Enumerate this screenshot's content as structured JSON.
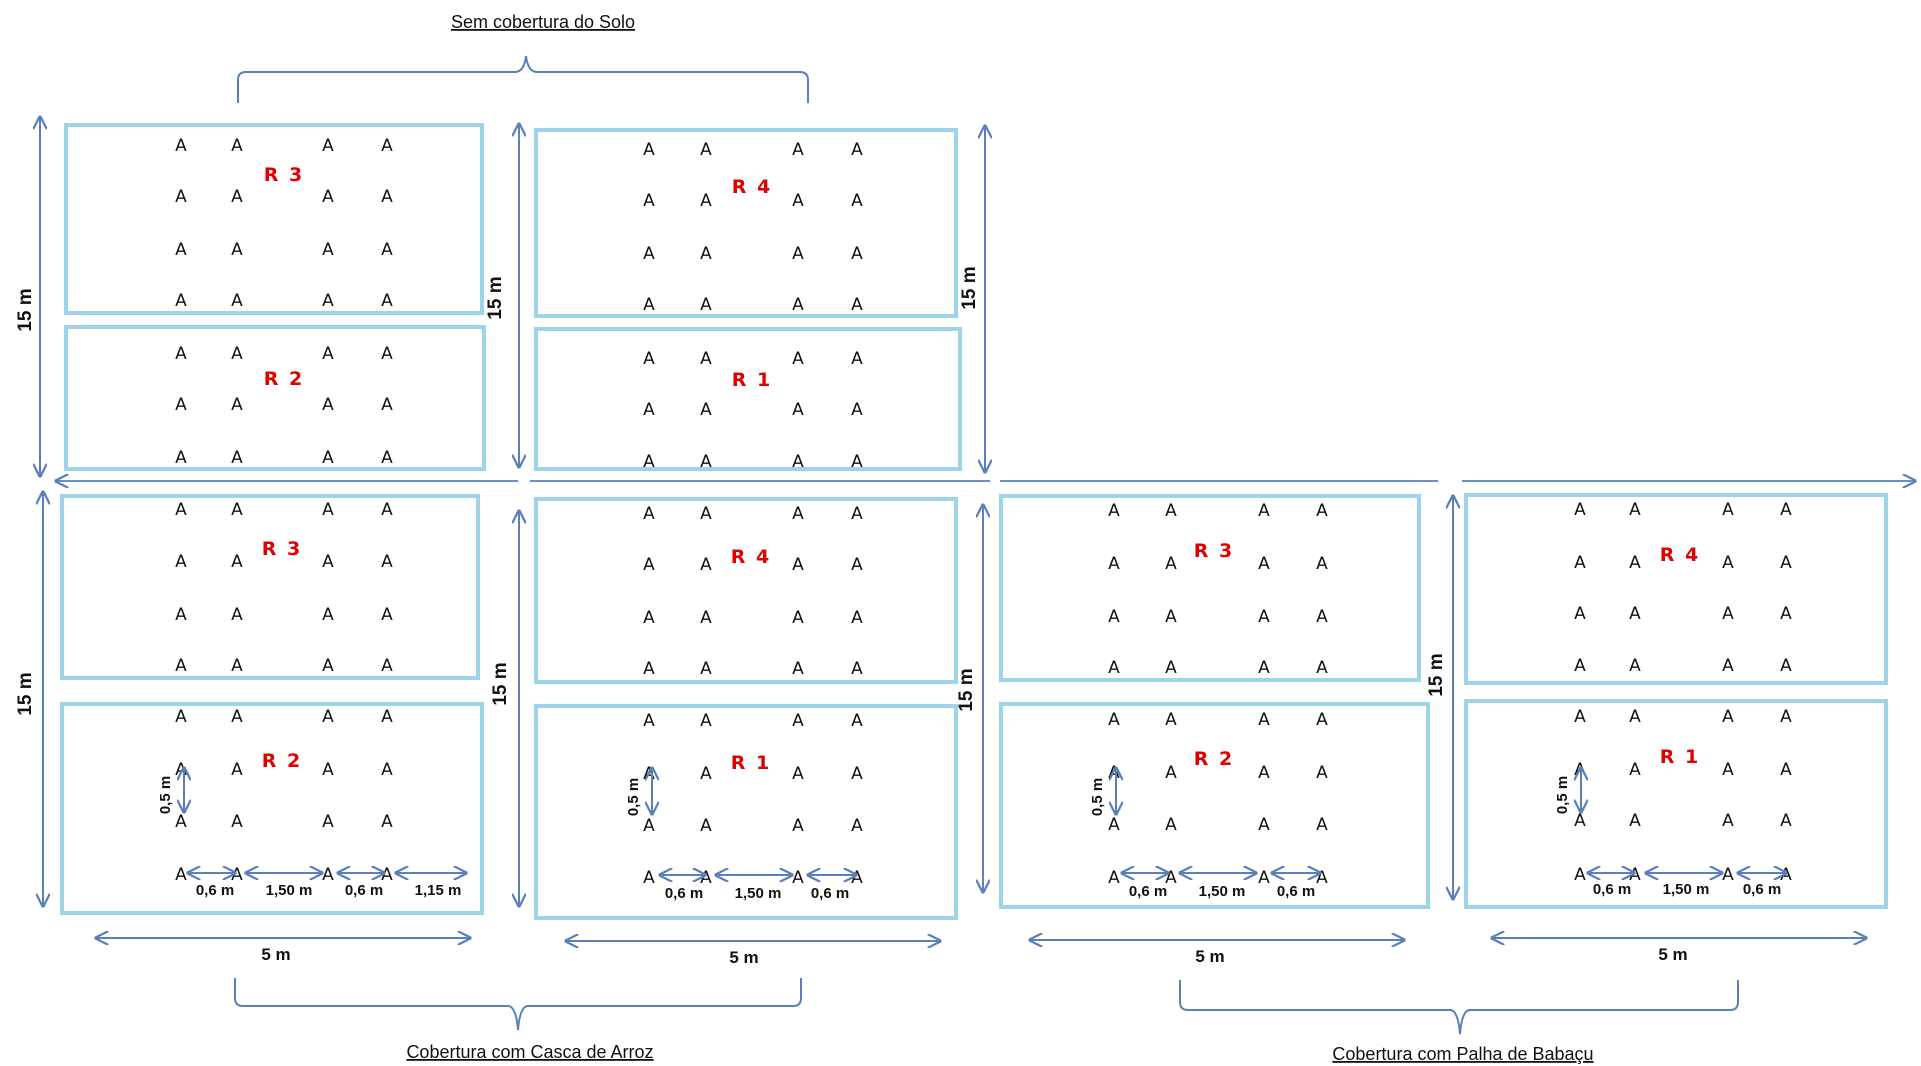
{
  "treatments": {
    "top": "Sem cobertura do Solo",
    "bottom_left": "Cobertura com Casca de Arroz",
    "bottom_right": "Cobertura com Palha de Babaçu"
  },
  "plant_symbol": "A",
  "dimensions": {
    "height": "15 m",
    "width": "5 m",
    "row_spacing": "0,5 m",
    "plant_spacing": "0,6 m",
    "row_gap": "1,50 m",
    "edge": "1,15 m"
  },
  "blocks": [
    {
      "name": "block-no-cover-1",
      "plots": [
        {
          "label": "R 3",
          "rows": 4
        },
        {
          "label": "R 2",
          "rows": 3
        }
      ]
    },
    {
      "name": "block-no-cover-2",
      "plots": [
        {
          "label": "R 4",
          "rows": 4
        },
        {
          "label": "R 1",
          "rows": 3
        }
      ]
    },
    {
      "name": "block-rice-husk-1",
      "plots": [
        {
          "label": "R 3",
          "rows": 4
        },
        {
          "label": "R 2",
          "rows": 4
        }
      ]
    },
    {
      "name": "block-rice-husk-2",
      "plots": [
        {
          "label": "R 4",
          "rows": 4
        },
        {
          "label": "R 1",
          "rows": 4
        }
      ]
    },
    {
      "name": "block-babassu-1",
      "plots": [
        {
          "label": "R 3",
          "rows": 4
        },
        {
          "label": "R 2",
          "rows": 4
        }
      ]
    },
    {
      "name": "block-babassu-2",
      "plots": [
        {
          "label": "R 4",
          "rows": 4
        },
        {
          "label": "R 1",
          "rows": 4
        }
      ]
    }
  ],
  "colors": {
    "plot_border": "#9fd3e8",
    "replicate_label": "#e00000",
    "arrow": "#5b7fb8"
  }
}
